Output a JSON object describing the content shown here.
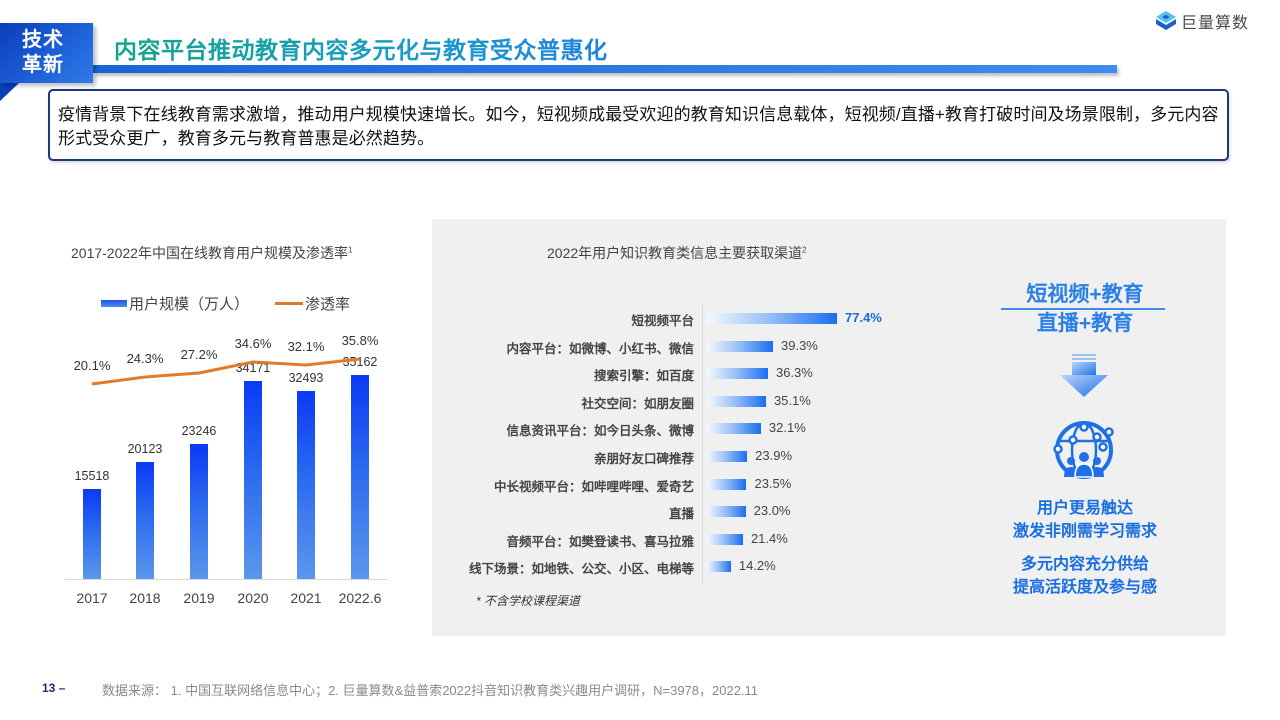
{
  "header": {
    "badge_line1": "技术",
    "badge_line2": "革新",
    "title": "内容平台推动教育内容多元化与教育受众普惠化",
    "logo_text": "巨量算数",
    "colors": {
      "badge": "#1d5fd8",
      "title_start": "#12a58a",
      "title_end": "#1f82e0",
      "bar": "#2f7be8"
    }
  },
  "summary": {
    "text": "疫情背景下在线教育需求激增，推动用户规模快速增长。如今，短视频成最受欢迎的教育知识信息载体，短视频/直播+教育打破时间及场景限制，多元内容形式受众更广，教育多元与教育普惠是必然趋势。"
  },
  "left_chart": {
    "title": "2017-2022年中国在线教育用户规模及渗透率",
    "title_sup": "1",
    "legend": {
      "bar": "用户规模（万人）",
      "line": "渗透率"
    }
  },
  "right_chart": {
    "title": "2022年用户知识教育类信息主要获取渠道",
    "title_sup": "2",
    "footnote": "* 不含学校课程渠道"
  },
  "side_panel": {
    "head_line1": "短视频+教育",
    "head_line2": "直播+教育",
    "arrow_icon": "down-arrow-icon",
    "globe_icon": "globe-people-icon",
    "text_block1_line1": "用户更易触达",
    "text_block1_line2": "激发非刚需学习需求",
    "text_block2_line1": "多元内容充分供给",
    "text_block2_line2": "提高活跃度及参与感"
  },
  "footer": {
    "page_number": "13 –",
    "source": "数据来源： 1. 中国互联网络信息中心；2. 巨量算数&益普索2022抖音知识教育类兴趣用户调研，N=3978，2022.11"
  },
  "chart_data": [
    {
      "type": "bar",
      "title": "2017-2022年中国在线教育用户规模及渗透率",
      "categories": [
        "2017",
        "2018",
        "2019",
        "2020",
        "2021",
        "2022.6"
      ],
      "series": [
        {
          "name": "用户规模（万人）",
          "type": "bar",
          "values": [
            15518,
            20123,
            23246,
            34171,
            32493,
            35162
          ],
          "color": "#1e55e6"
        },
        {
          "name": "渗透率",
          "type": "line",
          "values": [
            20.1,
            24.3,
            27.2,
            34.6,
            32.1,
            35.8
          ],
          "unit": "%",
          "color": "#e07b2c"
        }
      ],
      "value_labels": {
        "bar": [
          "15518",
          "20123",
          "23246",
          "34171",
          "32493",
          "35162"
        ],
        "line": [
          "20.1%",
          "24.3%",
          "27.2%",
          "34.6%",
          "32.1%",
          "35.8%"
        ]
      },
      "xlabel": "",
      "ylabel": "",
      "grid": false,
      "legend_position": "top"
    },
    {
      "type": "bar",
      "orientation": "horizontal",
      "title": "2022年用户知识教育类信息主要获取渠道",
      "categories": [
        "短视频平台",
        "内容平台：如微博、小红书、微信",
        "搜索引擎：如百度",
        "社交空间：如朋友圈",
        "信息资讯平台：如今日头条、微博",
        "亲朋好友口碑推荐",
        "中长视频平台：如哔哩哔哩、爱奇艺",
        "直播",
        "音频平台：如樊登读书、喜马拉雅",
        "线下场景：如地铁、公交、小区、电梯等"
      ],
      "values": [
        77.4,
        39.3,
        36.3,
        35.1,
        32.1,
        23.9,
        23.5,
        23.0,
        21.4,
        14.2
      ],
      "value_labels": [
        "77.4%",
        "39.3%",
        "36.3%",
        "35.1%",
        "32.1%",
        "23.9%",
        "23.5%",
        "23.0%",
        "21.4%",
        "14.2%"
      ],
      "unit": "%",
      "highlight_index": 0,
      "highlight_color": "#1a6ad8",
      "note": "* 不含学校课程渠道"
    }
  ]
}
